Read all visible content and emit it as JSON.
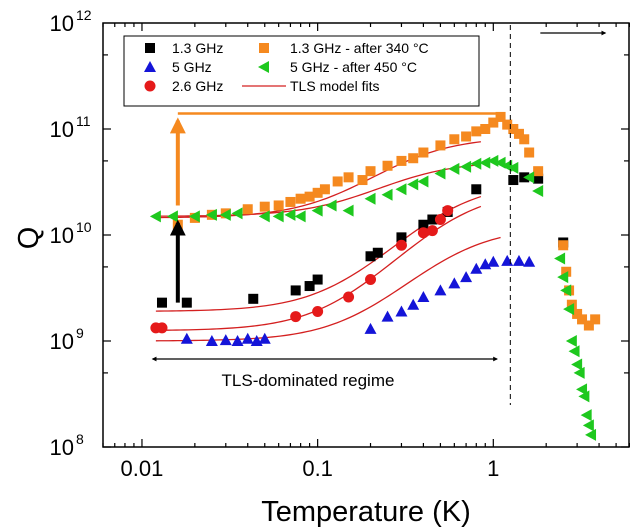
{
  "chart_data": {
    "type": "scatter",
    "xlabel": "Temperature (K)",
    "ylabel": "Q",
    "x_scale": "log",
    "y_scale": "log",
    "xlim": [
      0.006,
      6
    ],
    "ylim": [
      100000000.0,
      1000000000000.0
    ],
    "x_ticks": [
      {
        "value": 0.01,
        "label": "0.01"
      },
      {
        "value": 0.1,
        "label": "0.1"
      },
      {
        "value": 1,
        "label": "1"
      }
    ],
    "y_ticks": [
      {
        "value": 100000000.0,
        "base": "10",
        "exp": "8"
      },
      {
        "value": 1000000000.0,
        "base": "10",
        "exp": "9"
      },
      {
        "value": 10000000000.0,
        "base": "10",
        "exp": "10"
      },
      {
        "value": 100000000000.0,
        "base": "10",
        "exp": "11"
      },
      {
        "value": 1000000000000.0,
        "base": "10",
        "exp": "12"
      }
    ],
    "colors": {
      "black": "#000000",
      "orange": "#f5891f",
      "blue": "#1414d8",
      "green": "#1ec81e",
      "red": "#e51a1a",
      "fit": "#d42020"
    },
    "series": [
      {
        "name": "1.3 GHz",
        "marker": "square",
        "color": "#000000",
        "points": [
          [
            0.013,
            2300000000.0
          ],
          [
            0.018,
            2300000000.0
          ],
          [
            0.043,
            2500000000.0
          ],
          [
            0.075,
            3000000000.0
          ],
          [
            0.09,
            3300000000.0
          ],
          [
            0.1,
            3800000000.0
          ],
          [
            0.2,
            6300000000.0
          ],
          [
            0.22,
            6800000000.0
          ],
          [
            0.3,
            9500000000.0
          ],
          [
            0.4,
            12500000000.0
          ],
          [
            0.45,
            14000000000.0
          ],
          [
            0.55,
            16500000000.0
          ],
          [
            0.8,
            27000000000.0
          ],
          [
            1.3,
            33000000000.0
          ],
          [
            1.5,
            35000000000.0
          ],
          [
            1.8,
            34000000000.0
          ],
          [
            2.5,
            8500000000.0
          ]
        ]
      },
      {
        "name": "1.3 GHz - after 340 °C",
        "marker": "square",
        "color": "#f5891f",
        "points": [
          [
            0.016,
            12500000000.0
          ],
          [
            0.02,
            14500000000.0
          ],
          [
            0.025,
            15500000000.0
          ],
          [
            0.03,
            16000000000.0
          ],
          [
            0.04,
            17500000000.0
          ],
          [
            0.05,
            18500000000.0
          ],
          [
            0.06,
            19000000000.0
          ],
          [
            0.07,
            20500000000.0
          ],
          [
            0.08,
            22000000000.0
          ],
          [
            0.09,
            23000000000.0
          ],
          [
            0.1,
            25000000000.0
          ],
          [
            0.11,
            27000000000.0
          ],
          [
            0.13,
            32000000000.0
          ],
          [
            0.15,
            35000000000.0
          ],
          [
            0.18,
            33000000000.0
          ],
          [
            0.2,
            40000000000.0
          ],
          [
            0.25,
            45000000000.0
          ],
          [
            0.3,
            50000000000.0
          ],
          [
            0.35,
            53000000000.0
          ],
          [
            0.4,
            60000000000.0
          ],
          [
            0.5,
            70000000000.0
          ],
          [
            0.6,
            80000000000.0
          ],
          [
            0.7,
            85000000000.0
          ],
          [
            0.8,
            95000000000.0
          ],
          [
            0.9,
            100000000000.0
          ],
          [
            1.0,
            115000000000.0
          ],
          [
            1.1,
            130000000000.0
          ],
          [
            1.2,
            110000000000.0
          ],
          [
            1.3,
            100000000000.0
          ],
          [
            1.4,
            90000000000.0
          ],
          [
            1.5,
            80000000000.0
          ],
          [
            1.6,
            60000000000.0
          ],
          [
            1.8,
            40000000000.0
          ],
          [
            2.5,
            8000000000.0
          ],
          [
            2.6,
            4500000000.0
          ],
          [
            2.7,
            3000000000.0
          ],
          [
            2.8,
            2200000000.0
          ],
          [
            3.0,
            1800000000.0
          ],
          [
            3.2,
            1600000000.0
          ],
          [
            3.5,
            1400000000.0
          ],
          [
            3.8,
            1600000000.0
          ]
        ]
      },
      {
        "name": "5 GHz",
        "marker": "triangle-up",
        "color": "#1414d8",
        "points": [
          [
            0.018,
            1050000000.0
          ],
          [
            0.025,
            1000000000.0
          ],
          [
            0.03,
            1020000000.0
          ],
          [
            0.035,
            1000000000.0
          ],
          [
            0.04,
            1050000000.0
          ],
          [
            0.045,
            1000000000.0
          ],
          [
            0.05,
            1050000000.0
          ],
          [
            0.2,
            1300000000.0
          ],
          [
            0.25,
            1700000000.0
          ],
          [
            0.3,
            1900000000.0
          ],
          [
            0.35,
            2200000000.0
          ],
          [
            0.4,
            2600000000.0
          ],
          [
            0.5,
            3000000000.0
          ],
          [
            0.6,
            3500000000.0
          ],
          [
            0.7,
            4000000000.0
          ],
          [
            0.8,
            4800000000.0
          ],
          [
            0.9,
            5300000000.0
          ],
          [
            1.0,
            5600000000.0
          ],
          [
            1.2,
            5700000000.0
          ],
          [
            1.4,
            5700000000.0
          ],
          [
            1.6,
            5600000000.0
          ]
        ]
      },
      {
        "name": "5 GHz - after 450 °C",
        "marker": "triangle-left",
        "color": "#1ec81e",
        "points": [
          [
            0.012,
            15000000000.0
          ],
          [
            0.015,
            15000000000.0
          ],
          [
            0.02,
            15000000000.0
          ],
          [
            0.025,
            15500000000.0
          ],
          [
            0.03,
            15500000000.0
          ],
          [
            0.035,
            16000000000.0
          ],
          [
            0.05,
            15000000000.0
          ],
          [
            0.06,
            15000000000.0
          ],
          [
            0.07,
            15500000000.0
          ],
          [
            0.08,
            15000000000.0
          ],
          [
            0.1,
            17000000000.0
          ],
          [
            0.12,
            19000000000.0
          ],
          [
            0.15,
            17000000000.0
          ],
          [
            0.2,
            22000000000.0
          ],
          [
            0.25,
            24000000000.0
          ],
          [
            0.3,
            27000000000.0
          ],
          [
            0.35,
            30000000000.0
          ],
          [
            0.4,
            32000000000.0
          ],
          [
            0.5,
            38000000000.0
          ],
          [
            0.6,
            42000000000.0
          ],
          [
            0.7,
            44000000000.0
          ],
          [
            0.8,
            47000000000.0
          ],
          [
            0.9,
            48000000000.0
          ],
          [
            1.0,
            50000000000.0
          ],
          [
            1.1,
            48000000000.0
          ],
          [
            1.2,
            45000000000.0
          ],
          [
            1.3,
            43000000000.0
          ],
          [
            1.6,
            35000000000.0
          ],
          [
            1.8,
            26000000000.0
          ],
          [
            2.4,
            6000000000.0
          ],
          [
            2.5,
            4000000000.0
          ],
          [
            2.6,
            3000000000.0
          ],
          [
            2.7,
            2000000000.0
          ],
          [
            2.8,
            1000000000.0
          ],
          [
            2.9,
            800000000.0
          ],
          [
            3.0,
            600000000.0
          ],
          [
            3.1,
            500000000.0
          ],
          [
            3.2,
            350000000.0
          ],
          [
            3.3,
            300000000.0
          ],
          [
            3.4,
            200000000.0
          ],
          [
            3.5,
            160000000.0
          ],
          [
            3.6,
            130000000.0
          ]
        ]
      },
      {
        "name": "2.6 GHz",
        "marker": "circle",
        "color": "#e51a1a",
        "points": [
          [
            0.012,
            1330000000.0
          ],
          [
            0.013,
            1330000000.0
          ],
          [
            0.075,
            1700000000.0
          ],
          [
            0.1,
            1900000000.0
          ],
          [
            0.15,
            2600000000.0
          ],
          [
            0.2,
            3800000000.0
          ],
          [
            0.3,
            8000000000.0
          ],
          [
            0.4,
            10500000000.0
          ],
          [
            0.45,
            11000000000.0
          ],
          [
            0.5,
            14000000000.0
          ],
          [
            0.55,
            17000000000.0
          ]
        ]
      }
    ],
    "fits": {
      "name": "TLS model fits",
      "curves": [
        {
          "T0": 0.012,
          "T1": 0.85,
          "q0": 14500000000.0,
          "a": 70000000000.0,
          "tau": 0.32
        },
        {
          "T0": 0.012,
          "T1": 0.85,
          "q0": 15000000000.0,
          "a": 35000000000.0,
          "tau": 0.3
        },
        {
          "T0": 0.012,
          "T1": 0.85,
          "q0": 1900000000.0,
          "a": 30000000000.0,
          "tau": 0.55
        },
        {
          "T0": 0.012,
          "T1": 0.85,
          "q0": 1250000000.0,
          "a": 26000000000.0,
          "tau": 0.6
        },
        {
          "T0": 0.012,
          "T1": 1.1,
          "q0": 1000000000.0,
          "a": 11000000000.0,
          "tau": 0.6
        }
      ]
    },
    "arrows": [
      {
        "name": "orange-arrow",
        "x": 0.016,
        "y_from": 19000000000.0,
        "y_to": 120000000000.0,
        "color": "#f5891f"
      },
      {
        "name": "black-arrow",
        "x": 0.016,
        "y_from": 2300000000.0,
        "y_to": 13000000000.0,
        "color": "#000000"
      }
    ],
    "threshold_line_x": 1.25,
    "orange_hline": {
      "x_from": 0.016,
      "x_to": 1.05,
      "y": 140000000000.0
    },
    "annotation": {
      "text": "TLS-dominated regime",
      "x_from": 0.0115,
      "x_to": 1.05,
      "y": 600000000.0
    },
    "legend": {
      "placement": "top-left",
      "entries": [
        {
          "label": "1.3 GHz",
          "marker": "square",
          "color": "#000000"
        },
        {
          "label": "1.3 GHz - after 340 °C",
          "marker": "square",
          "color": "#f5891f"
        },
        {
          "label": "5 GHz",
          "marker": "triangle-up",
          "color": "#1414d8"
        },
        {
          "label": "5 GHz - after 450 °C",
          "marker": "triangle-left",
          "color": "#1ec81e"
        },
        {
          "label": "2.6 GHz",
          "marker": "circle",
          "color": "#e51a1a"
        },
        {
          "label": "TLS model fits",
          "marker": "line",
          "color": "#d42020"
        }
      ]
    }
  }
}
